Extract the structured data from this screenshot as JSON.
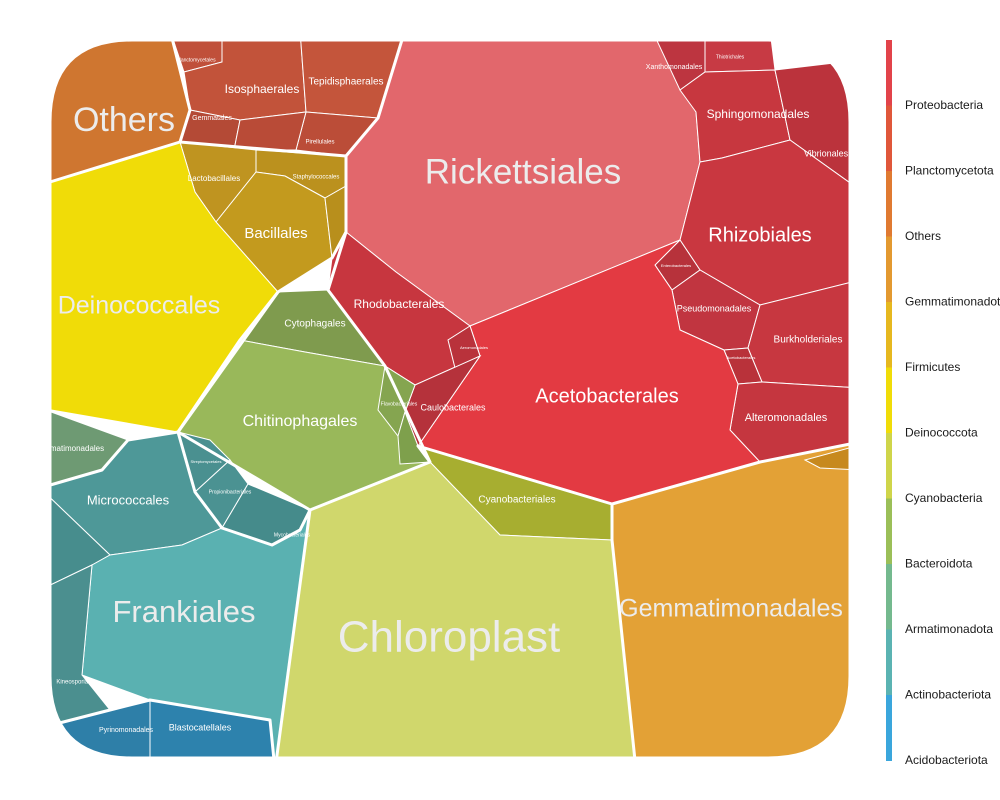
{
  "chart_data": {
    "type": "voronoi-treemap",
    "legend": {
      "placement": "right",
      "entries": [
        {
          "name": "Proteobacteria",
          "color": "#e2434a"
        },
        {
          "name": "Planctomycetota",
          "color": "#e0573a"
        },
        {
          "name": "Others",
          "color": "#e07a31"
        },
        {
          "name": "Gemmatimonadota",
          "color": "#e39930"
        },
        {
          "name": "Firmicutes",
          "color": "#e6b81f"
        },
        {
          "name": "Deinococcota",
          "color": "#f0dc08"
        },
        {
          "name": "Cyanobacteria",
          "color": "#cfd54a"
        },
        {
          "name": "Bacteroidota",
          "color": "#9bbf58"
        },
        {
          "name": "Armatimonadota",
          "color": "#74b98e"
        },
        {
          "name": "Actinobacteriota",
          "color": "#5bb3b2"
        },
        {
          "name": "Acidobacteriota",
          "color": "#3aa6dc"
        }
      ]
    },
    "labels": {
      "Others": "Others",
      "Isosphaerales": "Isosphaerales",
      "Tepidisphaerales": "Tepidisphaerales",
      "Gemmatales": "Gemmatales",
      "Pirellulales": "Pirellulales",
      "Planctomycetales": "Planctomycetales",
      "Rickettsiales": "Rickettsiales",
      "Xanthomonadales": "Xanthomonadales",
      "Thiotrichales": "Thiotrichales",
      "Sphingomonadales": "Sphingomonadales",
      "Vibrionales": "Vibrionales",
      "Rhizobiales": "Rhizobiales",
      "Enterobacterales": "Enterobacterales",
      "Pseudomonadales": "Pseudomonadales",
      "Burkholderiales": "Burkholderiales",
      "Acetobacterales": "Acetobacterales",
      "Acetobacterales_small": "Acetobacterales",
      "Alteromonadales": "Alteromonadales",
      "Rhodobacterales": "Rhodobacterales",
      "Caulobacterales": "Caulobacterales",
      "Aeromonadales": "Aeromonadales",
      "Lactobacillales": "Lactobacillales",
      "Staphylococcales": "Staphylococcales",
      "Bacillales": "Bacillales",
      "Deinococcales": "Deinococcales",
      "Cytophagales": "Cytophagales",
      "Chitinophagales": "Chitinophagales",
      "Flavobacteriales": "Flavobacteriales",
      "Cyanobacteriales": "Cyanobacteriales",
      "Chloroplast": "Chloroplast",
      "Gemmatimonadales": "Gemmatimonadales",
      "Armatimonadales": "Armatimonadales",
      "Micrococcales": "Micrococcales",
      "Streptomycetales": "Streptomycetales",
      "Propionibacteriales": "Propionibacteriales",
      "Mycobacteriales": "Mycobacteriales",
      "Frankiales": "Frankiales",
      "Kineosporiales": "Kineosporiales",
      "Pyrinomonadales": "Pyrinomonadales",
      "Blastocatellales": "Blastocatellales"
    }
  }
}
